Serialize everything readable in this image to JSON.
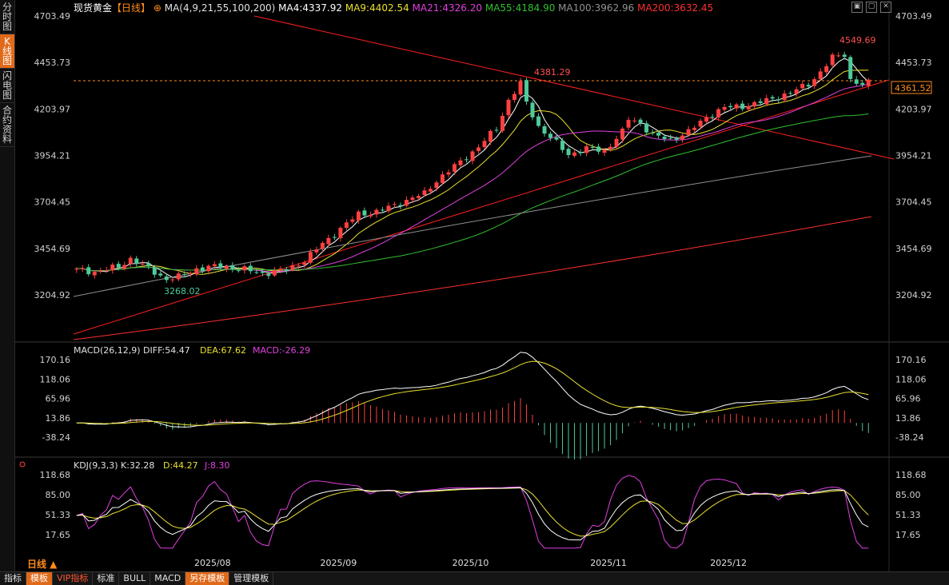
{
  "sidebar": {
    "tabs": [
      {
        "label": "分时图",
        "active": false
      },
      {
        "label": "K线图",
        "active": true
      },
      {
        "label": "闪电图",
        "active": false
      },
      {
        "label": "合约资料",
        "active": false
      }
    ]
  },
  "header": {
    "title": "现货黄金",
    "period": "【日线】",
    "ma_label": "MA(4,9,21,55,100,200)",
    "ma": [
      {
        "text": "MA4:4337.92",
        "color": "#ffffff"
      },
      {
        "text": "MA9:4402.54",
        "color": "#e8e030"
      },
      {
        "text": "MA21:4326.20",
        "color": "#e040e0"
      },
      {
        "text": "MA55:4184.90",
        "color": "#30c030"
      },
      {
        "text": "MA100:3962.96",
        "color": "#909090"
      },
      {
        "text": "MA200:3632.45",
        "color": "#ff3030"
      }
    ]
  },
  "main_axis": {
    "ticks": [
      "4703.49",
      "4453.73",
      "4203.97",
      "3954.21",
      "3704.45",
      "3454.69",
      "3204.92"
    ],
    "values": [
      4703.49,
      4453.73,
      4203.97,
      3954.21,
      3704.45,
      3454.69,
      3204.92
    ]
  },
  "current_price": "4361.52",
  "annotations": {
    "high": "4549.69",
    "mid_high": "4381.29",
    "low": "3268.02"
  },
  "macd": {
    "label": "MACD(26,12,9)",
    "diff": "DIFF:54.47",
    "dea": "DEA:67.62",
    "macd": "MACD:-26.29",
    "ticks": [
      "170.16",
      "118.06",
      "65.96",
      "13.86",
      "-38.24"
    ],
    "values": [
      170.16,
      118.06,
      65.96,
      13.86,
      -38.24
    ]
  },
  "kdj": {
    "label": "KDJ(9,3,3)",
    "k": "K:32.28",
    "d": "D:44.27",
    "j": "J:8.30",
    "ticks": [
      "118.68",
      "85.00",
      "51.33",
      "17.65"
    ],
    "values": [
      118.68,
      85.0,
      51.33,
      17.65
    ]
  },
  "x_axis": [
    {
      "label": "2025/08",
      "bar": 20
    },
    {
      "label": "2025/09",
      "bar": 41
    },
    {
      "label": "2025/10",
      "bar": 63
    },
    {
      "label": "2025/11",
      "bar": 86
    },
    {
      "label": "2025/12",
      "bar": 106
    }
  ],
  "period_label": "日线 ▲",
  "bottom_tabs": [
    {
      "label": "指标",
      "style": ""
    },
    {
      "label": "模板",
      "style": "orange"
    },
    {
      "label": "VIP指标",
      "style": "red"
    },
    {
      "label": "标准",
      "style": ""
    },
    {
      "label": "BULL",
      "style": ""
    },
    {
      "label": "MACD",
      "style": ""
    },
    {
      "label": "另存模板",
      "style": "orange"
    },
    {
      "label": "管理模板",
      "style": ""
    }
  ],
  "colors": {
    "up": "#ff4040",
    "down": "#4ecb9a",
    "bg": "#000000",
    "accent": "#e06a1a"
  },
  "price_series": {
    "note_keypoints_close": [
      [
        0,
        3338
      ],
      [
        3,
        3330
      ],
      [
        7,
        3355
      ],
      [
        9,
        3400
      ],
      [
        12,
        3345
      ],
      [
        15,
        3290
      ],
      [
        17,
        3300
      ],
      [
        20,
        3345
      ],
      [
        24,
        3360
      ],
      [
        28,
        3340
      ],
      [
        31,
        3320
      ],
      [
        35,
        3340
      ],
      [
        38,
        3390
      ],
      [
        41,
        3480
      ],
      [
        44,
        3560
      ],
      [
        47,
        3640
      ],
      [
        50,
        3650
      ],
      [
        54,
        3700
      ],
      [
        58,
        3750
      ],
      [
        60,
        3820
      ],
      [
        64,
        3920
      ],
      [
        67,
        4000
      ],
      [
        70,
        4100
      ],
      [
        72,
        4250
      ],
      [
        74,
        4340
      ],
      [
        75,
        4235
      ],
      [
        77,
        4110
      ],
      [
        80,
        4020
      ],
      [
        82,
        3960
      ],
      [
        85,
        3990
      ],
      [
        88,
        3980
      ],
      [
        91,
        4080
      ],
      [
        92,
        4150
      ],
      [
        94,
        4130
      ],
      [
        96,
        4060
      ],
      [
        99,
        4040
      ],
      [
        102,
        4080
      ],
      [
        105,
        4160
      ],
      [
        108,
        4210
      ],
      [
        111,
        4220
      ],
      [
        113,
        4230
      ],
      [
        116,
        4260
      ],
      [
        119,
        4290
      ],
      [
        122,
        4340
      ],
      [
        124,
        4400
      ],
      [
        126,
        4480
      ],
      [
        128,
        4500
      ],
      [
        129,
        4360
      ],
      [
        131,
        4330
      ],
      [
        132,
        4361.52
      ]
    ]
  }
}
